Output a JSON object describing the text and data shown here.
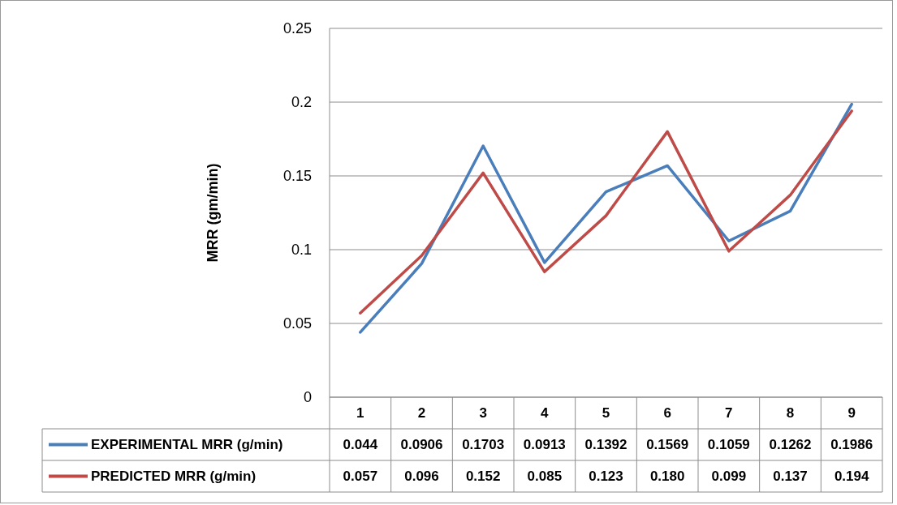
{
  "chart_data": {
    "type": "line",
    "ylabel": "MRR (gm/min)",
    "categories": [
      "1",
      "2",
      "3",
      "4",
      "5",
      "6",
      "7",
      "8",
      "9"
    ],
    "series": [
      {
        "name": "EXPERIMENTAL MRR (g/min)",
        "color": "#4a7ebb",
        "values": [
          0.044,
          0.0906,
          0.1703,
          0.0913,
          0.1392,
          0.1569,
          0.1059,
          0.1262,
          0.1986
        ],
        "value_labels": [
          "0.044",
          "0.0906",
          "0.1703",
          "0.0913",
          "0.1392",
          "0.1569",
          "0.1059",
          "0.1262",
          "0.1986"
        ]
      },
      {
        "name": "PREDICTED MRR (g/min)",
        "color": "#be4b48",
        "values": [
          0.057,
          0.096,
          0.152,
          0.085,
          0.123,
          0.18,
          0.099,
          0.137,
          0.194
        ],
        "value_labels": [
          "0.057",
          "0.096",
          "0.152",
          "0.085",
          "0.123",
          "0.180",
          "0.099",
          "0.137",
          "0.194"
        ]
      }
    ],
    "ylim": [
      0,
      0.25
    ],
    "yticks": [
      0,
      0.05,
      0.1,
      0.15,
      0.2,
      0.25
    ],
    "grid": "y",
    "legend": "bottom",
    "marker": "none",
    "line_style": "solid"
  }
}
